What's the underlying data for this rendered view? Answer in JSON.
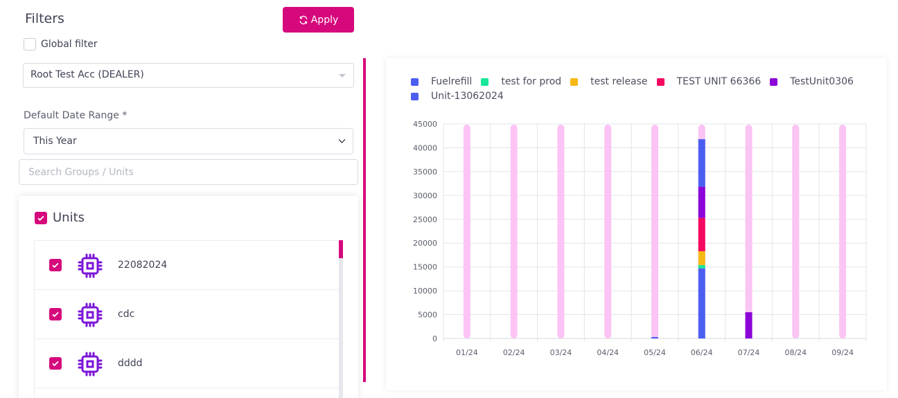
{
  "filters": {
    "title": "Filters",
    "apply_label": "Apply",
    "global_filter_label": "Global filter",
    "account_value": "Root Test Acc (DEALER)",
    "date_range_label": "Default Date Range *",
    "date_range_value": "This Year",
    "search_placeholder": "Search Groups / Units"
  },
  "units": {
    "header": "Units",
    "items": [
      {
        "name": "22082024",
        "icon": "chip-icon"
      },
      {
        "name": "cdc",
        "icon": "chip-icon"
      },
      {
        "name": "dddd",
        "icon": "chip-icon"
      }
    ]
  },
  "colors": {
    "accent": "#d6097c",
    "bar_background": "#fbc4f4"
  },
  "chart_data": {
    "type": "bar",
    "stacked": true,
    "categories": [
      "01/24",
      "02/24",
      "03/24",
      "04/24",
      "05/24",
      "06/24",
      "07/24",
      "08/24",
      "09/24"
    ],
    "ylim": [
      0,
      45000
    ],
    "yticks": [
      "45000",
      "40000",
      "35000",
      "30000",
      "25000",
      "20000",
      "15000",
      "10000",
      "5000",
      "0"
    ],
    "grid": true,
    "legend_position": "top",
    "series": [
      {
        "name": "Fuelrefill",
        "color": "#4c5ef0",
        "values": [
          0,
          0,
          0,
          0,
          300,
          14700,
          0,
          0,
          0
        ]
      },
      {
        "name": "test for prod",
        "color": "#18e79a",
        "values": [
          0,
          0,
          0,
          0,
          0,
          700,
          0,
          0,
          0
        ]
      },
      {
        "name": "test release",
        "color": "#f7b916",
        "values": [
          0,
          0,
          0,
          0,
          0,
          2900,
          0,
          0,
          0
        ]
      },
      {
        "name": "TEST UNIT 66366",
        "color": "#f5085f",
        "values": [
          0,
          0,
          0,
          0,
          0,
          7000,
          0,
          0,
          0
        ]
      },
      {
        "name": "TestUnit0306",
        "color": "#8b04d8",
        "values": [
          0,
          0,
          0,
          0,
          0,
          6500,
          5500,
          0,
          0
        ]
      },
      {
        "name": "Unit-13062024",
        "color": "#4c5ef0",
        "values": [
          0,
          0,
          0,
          0,
          0,
          10000,
          0,
          0,
          0
        ]
      }
    ]
  }
}
